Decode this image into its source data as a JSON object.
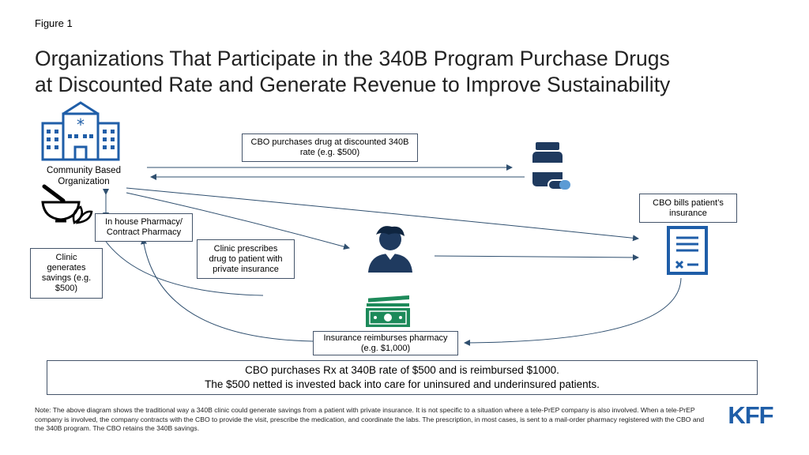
{
  "figure_label": "Figure 1",
  "title_line1": "Organizations That Participate in the 340B Program Purchase Drugs",
  "title_line2": "at Discounted Rate and Generate Revenue to Improve Sustainability",
  "nodes": {
    "cbo_line1": "Community Based",
    "cbo_line2": "Organization",
    "pharmacy_line1": "In house Pharmacy/",
    "pharmacy_line2": "Contract Pharmacy"
  },
  "boxes": {
    "purchase_line1": "CBO purchases drug at discounted 340B",
    "purchase_line2": "rate (e.g. $500)",
    "bills_line1": "CBO bills patient’s",
    "bills_line2": "insurance",
    "prescribes_line1": "Clinic prescribes",
    "prescribes_line2": "drug to patient with",
    "prescribes_line3": "private insurance",
    "savings_line1": "Clinic",
    "savings_line2": "generates",
    "savings_line3": "savings  (e.g.",
    "savings_line4": "$500)",
    "reimburse_line1": "Insurance reimburses pharmacy",
    "reimburse_line2": "(e.g. $1,000)"
  },
  "summary_line1": "CBO purchases Rx at 340B rate of $500 and is reimbursed $1000.",
  "summary_line2": "The $500 netted is invested back into care for uninsured and underinsured patients.",
  "note": "Note: The above diagram shows the traditional way a 340B clinic could generate savings from a patient with private insurance. It is not specific to a situation where a tele-PrEP company is also involved. When a tele-PrEP company is involved, the company contracts with the CBO to provide the visit, prescribe the medication, and coordinate the labs. The prescription, in most cases, is sent to a mail-order pharmacy registered with the CBO and the 340B program. The CBO retains the 340B savings.",
  "logo_text": "KFF",
  "colors": {
    "icon_blue": "#1f5ea8",
    "navy": "#1f3a5f",
    "money_green": "#1d8a5a",
    "arrow": "#2f4f6f"
  }
}
